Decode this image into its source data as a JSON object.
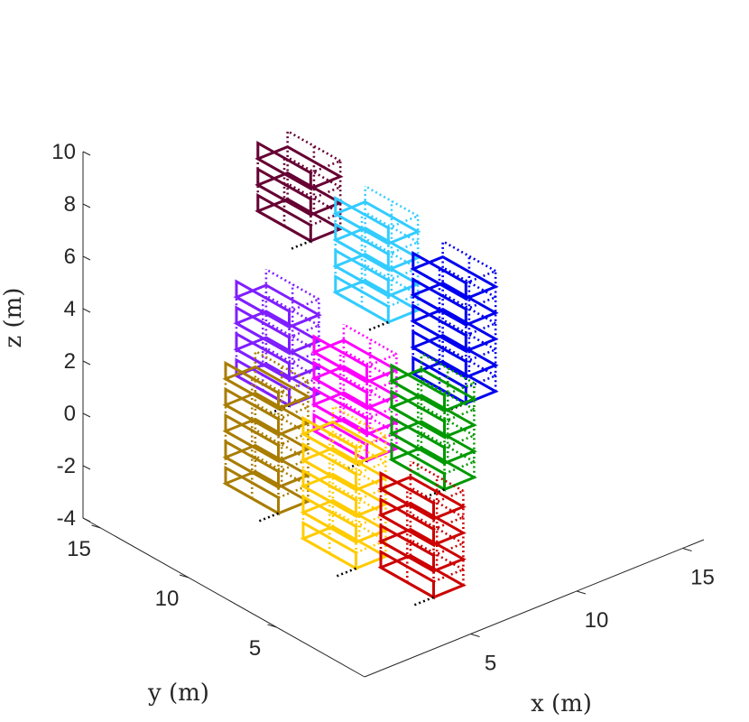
{
  "chart_data": {
    "type": "3d-wireframe",
    "xlabel": "x (m)",
    "ylabel": "y (m)",
    "zlabel": "z (m)",
    "xlim": [
      0,
      16
    ],
    "ylim": [
      0,
      16
    ],
    "zlim": [
      -4,
      10
    ],
    "xticks": [
      "5",
      "10",
      "15"
    ],
    "yticks": [
      "5",
      "10",
      "15"
    ],
    "zticks": [
      "-4",
      "-2",
      "0",
      "2",
      "4",
      "6",
      "8",
      "10"
    ],
    "grid": false,
    "series": [
      {
        "color": "#a87d00",
        "x": 0.5,
        "y_range": [
          5.5,
          8.5
        ],
        "z_levels": [
          0,
          1,
          2,
          3,
          4
        ],
        "height": 0.6
      },
      {
        "color": "#ffcc00",
        "x": 2.5,
        "y_range": [
          3.5,
          6.5
        ],
        "z_levels": [
          -2,
          -1,
          0,
          1,
          2
        ],
        "height": 0.6
      },
      {
        "color": "#cc0000",
        "x": 4.5,
        "y_range": [
          1.5,
          4.5
        ],
        "z_levels": [
          -3,
          -2,
          -1,
          0
        ],
        "height": 0.6
      },
      {
        "color": "#7f1fff",
        "x": 3.5,
        "y_range": [
          8.5,
          11.5
        ],
        "z_levels": [
          2,
          3,
          4,
          5
        ],
        "height": 0.6
      },
      {
        "color": "#ff00ff",
        "x": 5.5,
        "y_range": [
          6.5,
          9.5
        ],
        "z_levels": [
          0,
          1,
          2,
          3
        ],
        "height": 0.6
      },
      {
        "color": "#009900",
        "x": 7.5,
        "y_range": [
          4.5,
          7.5
        ],
        "z_levels": [
          -1,
          0,
          1,
          2
        ],
        "height": 0.6
      },
      {
        "color": "#660033",
        "x": 7.0,
        "y_range": [
          11.5,
          14.5
        ],
        "z_levels": [
          6,
          7,
          8
        ],
        "height": 0.6
      },
      {
        "color": "#33ccff",
        "x": 9.0,
        "y_range": [
          9.5,
          12.5
        ],
        "z_levels": [
          3,
          4,
          5,
          6
        ],
        "height": 0.6
      },
      {
        "color": "#0000ee",
        "x": 11.0,
        "y_range": [
          7.5,
          10.5
        ],
        "z_levels": [
          0,
          1,
          2,
          3,
          4
        ],
        "height": 0.6
      }
    ]
  }
}
